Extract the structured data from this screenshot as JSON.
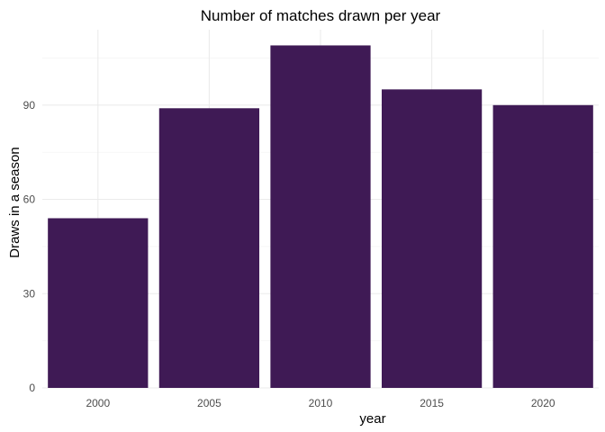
{
  "chart_data": {
    "type": "bar",
    "title": "Number of matches drawn per year",
    "xlabel": "year",
    "ylabel": "Draws in a season",
    "categories": [
      "2000",
      "2005",
      "2010",
      "2015",
      "2020"
    ],
    "values": [
      54,
      89,
      109,
      95,
      90
    ],
    "yticks": [
      0,
      30,
      60,
      90
    ],
    "ylim": [
      0,
      114
    ],
    "grid": true,
    "legend": "none",
    "bar_color": "#3F1A55"
  }
}
